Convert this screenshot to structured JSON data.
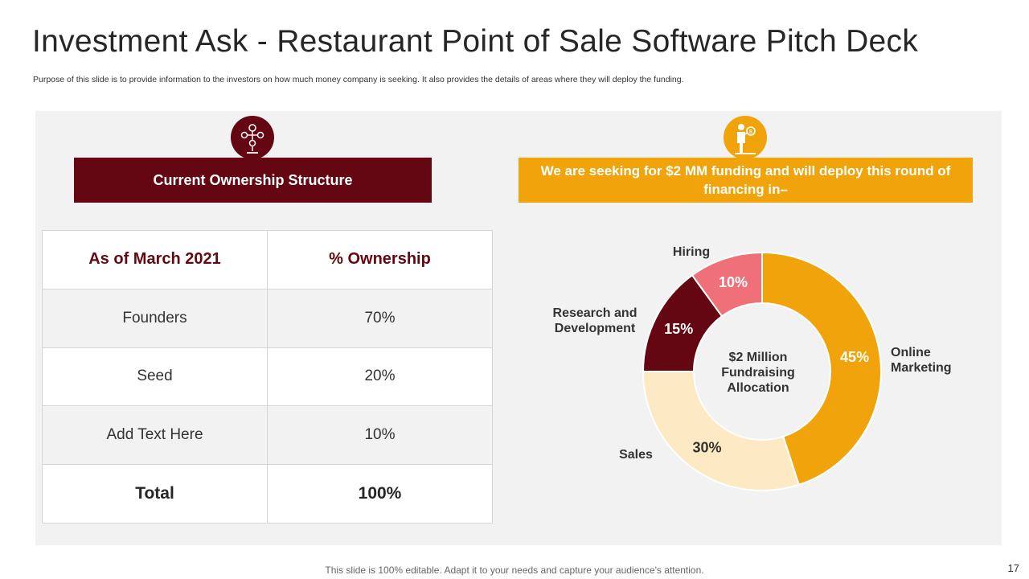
{
  "slide": {
    "title": "Investment Ask - Restaurant Point of Sale Software Pitch Deck",
    "subtitle": "Purpose of this slide is to provide information to the investors on how much money company is seeking. It also provides the details of areas where they will deploy the funding.",
    "footer": "This slide is 100% editable. Adapt it to your needs and capture your audience's attention.",
    "page_number": "17"
  },
  "left": {
    "icon": "ownership-network-icon",
    "banner": "Current Ownership Structure",
    "table": {
      "headers": [
        "As of March 2021",
        "% Ownership"
      ],
      "rows": [
        [
          "Founders",
          "70%"
        ],
        [
          "Seed",
          "20%"
        ],
        [
          "Add Text Here",
          "10%"
        ]
      ],
      "total": [
        "Total",
        "100%"
      ]
    }
  },
  "right": {
    "icon": "investor-person-icon",
    "banner": "We are seeking for $2 MM funding and will deploy this round of financing in–"
  },
  "colors": {
    "maroon": "#650712",
    "orange": "#f0a30a",
    "pink": "#f07079",
    "cream": "#fde9c4",
    "panel": "#f2f2f2"
  },
  "chart_data": {
    "type": "pie",
    "donut": true,
    "center_text": [
      "$2 Million",
      "Fundraising",
      "Allocation"
    ],
    "categories": [
      "Online Marketing",
      "Sales",
      "Research and Development",
      "Hiring"
    ],
    "values": [
      45,
      30,
      15,
      10
    ],
    "value_labels": [
      "45%",
      "30%",
      "15%",
      "10%"
    ],
    "label_lines": [
      [
        "Online",
        "Marketing"
      ],
      [
        "Sales"
      ],
      [
        "Research and",
        "Development"
      ],
      [
        "Hiring"
      ]
    ],
    "colors": [
      "#f0a30a",
      "#fde9c4",
      "#650712",
      "#f07079"
    ],
    "value_label_colors": [
      "#ffffff",
      "#333333",
      "#ffffff",
      "#ffffff"
    ]
  }
}
